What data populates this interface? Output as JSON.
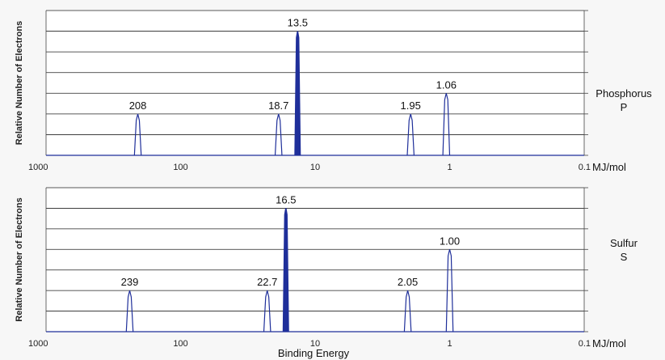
{
  "chart_data": [
    {
      "type": "line",
      "ylabel": "Relative Number of Electrons",
      "xlabel": "",
      "x_unit": "MJ/mol",
      "x_scale": "log-reversed",
      "xlim": [
        1000,
        0.1
      ],
      "x_ticks": [
        "1000",
        "100",
        "10",
        "1",
        "0.1"
      ],
      "element_name": "Phosphorus",
      "element_symbol": "P",
      "peak_color": "#1f2f9a",
      "grid": true,
      "peaks": [
        {
          "energy": 208,
          "height": 2,
          "label": "208"
        },
        {
          "energy": 18.7,
          "height": 2,
          "label": "18.7"
        },
        {
          "energy": 13.5,
          "height": 6,
          "label": "13.5"
        },
        {
          "energy": 1.95,
          "height": 2,
          "label": "1.95"
        },
        {
          "energy": 1.06,
          "height": 3,
          "label": "1.06"
        }
      ],
      "ylim": [
        0,
        7
      ]
    },
    {
      "type": "line",
      "ylabel": "Relative Number of Electrons",
      "xlabel": "Binding Energy",
      "x_unit": "MJ/mol",
      "x_scale": "log-reversed",
      "xlim": [
        1000,
        0.1
      ],
      "x_ticks": [
        "1000",
        "100",
        "10",
        "1",
        "0.1"
      ],
      "element_name": "Sulfur",
      "element_symbol": "S",
      "peak_color": "#1f2f9a",
      "grid": true,
      "peaks": [
        {
          "energy": 239,
          "height": 2,
          "label": "239"
        },
        {
          "energy": 22.7,
          "height": 2,
          "label": "22.7"
        },
        {
          "energy": 16.5,
          "height": 6,
          "label": "16.5"
        },
        {
          "energy": 2.05,
          "height": 2,
          "label": "2.05"
        },
        {
          "energy": 1.0,
          "height": 4,
          "label": "1.00"
        }
      ],
      "ylim": [
        0,
        7
      ]
    }
  ]
}
